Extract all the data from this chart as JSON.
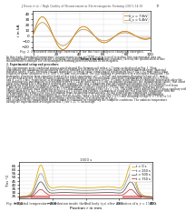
{
  "page_bg": "#ffffff",
  "header_line1": "J. Kwon et al. / High Quality of Measurement in Electromagnetic Forming (2015) 14-18",
  "header_page": "17",
  "top_chart": {
    "title": "Fig. 2. Measured discharge current i(t) for the two analyzed charging energies.",
    "xlabel": "Time t in ms",
    "ylabel": "i in kA",
    "ylim": [
      -25,
      45
    ],
    "xlim": [
      0,
      100
    ],
    "yticks": [
      -20,
      -10,
      0,
      10,
      20,
      30,
      40
    ],
    "xticks": [
      1,
      20,
      40,
      60,
      80,
      100
    ],
    "xtick_labels": [
      "1",
      "20",
      "40",
      "60",
      "80",
      "100"
    ],
    "legend": [
      "U = 7.6 kV\nU_c = 7.6kV",
      "U = 5.4 kV\nU_c = 5.4kV"
    ],
    "legend_simple": [
      "U_c = 7.6kV",
      "U_c = 5.4kV"
    ],
    "colors_measured": [
      "#c8860a",
      "#c8860a"
    ],
    "colors_simulated": [
      "#c8860a",
      "#c8860a"
    ]
  },
  "bottom_chart": {
    "title": "Fig. 4. Spatial temperature distribution inside the coil body (r,z) after a rotation of n_r = 1500 s.",
    "supertitle": "1000 s",
    "xlabel": "Position r in mm",
    "ylabel": "T in °C",
    "ylim": [
      22,
      70
    ],
    "xlim": [
      -400,
      400
    ],
    "yticks": [
      25,
      30,
      35,
      40,
      45,
      50,
      55,
      60,
      65
    ],
    "xticks": [
      -400,
      -200,
      0,
      200,
      400
    ],
    "legend": [
      "t = 0 s",
      "t = 250 s",
      "t = 500 s",
      "t = 750 s"
    ],
    "line_colors": [
      "#ddaa00",
      "#999999",
      "#555555",
      "#cc3333"
    ]
  },
  "font_size": 3.5,
  "axis_font_size": 3.2,
  "tick_font_size": 3.0
}
